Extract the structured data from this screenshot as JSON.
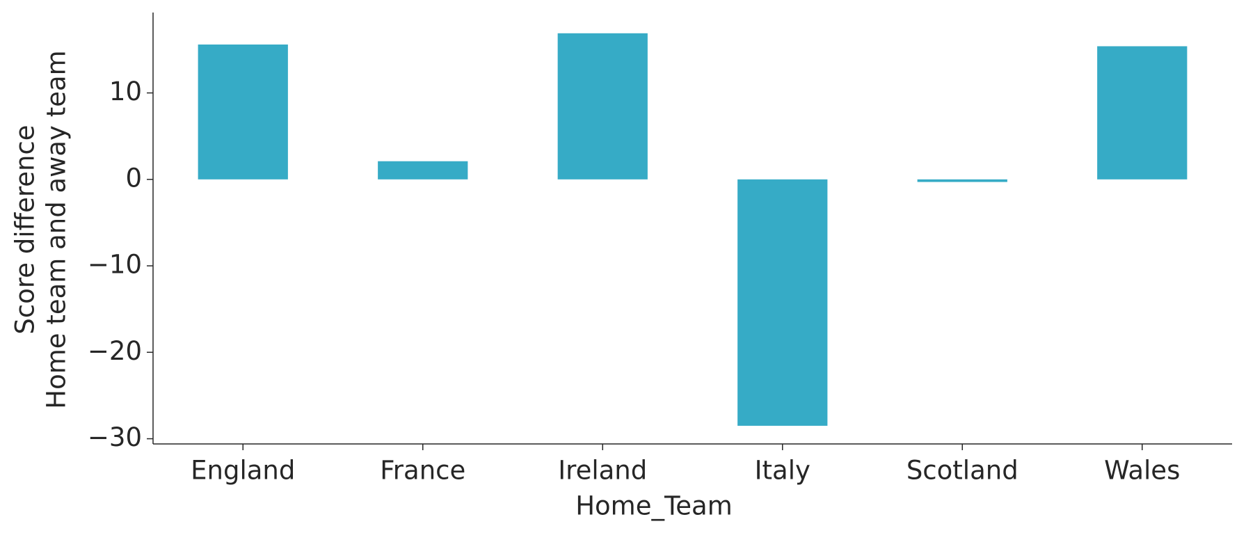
{
  "chart_data": {
    "type": "bar",
    "xlabel": "Home_Team",
    "ylabel": [
      "Score difference",
      "Home team and away team"
    ],
    "categories": [
      "England",
      "France",
      "Ireland",
      "Italy",
      "Scotland",
      "Wales"
    ],
    "values": [
      15.6,
      2.1,
      16.9,
      -28.5,
      -0.3,
      15.4
    ],
    "color": "#36abc6",
    "ylim": [
      -30.6,
      19.3
    ],
    "yticks": [
      {
        "value": -30,
        "label": "−30"
      },
      {
        "value": -20,
        "label": "−20"
      },
      {
        "value": -10,
        "label": "−10"
      },
      0,
      10
    ],
    "grid": false
  }
}
